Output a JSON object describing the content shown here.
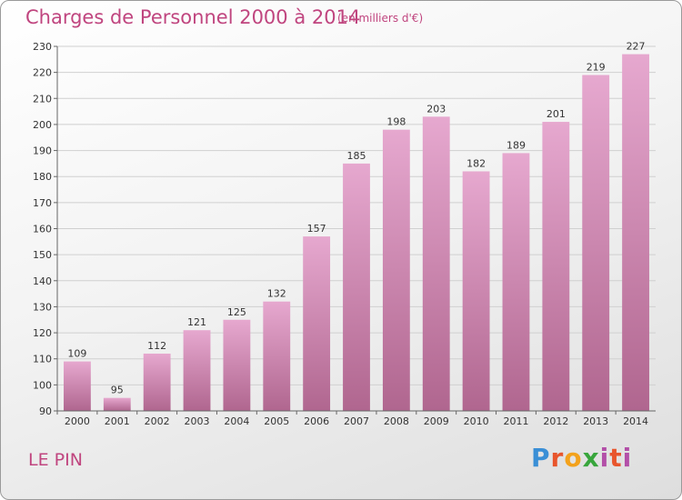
{
  "header": {
    "title": "Charges de Personnel 2000 à 2014",
    "subtitle": "(en milliers d'€)"
  },
  "footer": {
    "place": "LE PIN",
    "logo": {
      "p": "P",
      "r": "r",
      "o": "o",
      "x": "x",
      "i": "i",
      "t": "t",
      "i2": "i"
    }
  },
  "colors": {
    "bar_top": "#e6a8cf",
    "bar_bottom": "#b0668f",
    "accent": "#c0457f"
  },
  "chart_data": {
    "type": "bar",
    "title": "Charges de Personnel 2000 à 2014",
    "subtitle": "(en milliers d'€)",
    "xlabel": "",
    "ylabel": "",
    "categories": [
      "2000",
      "2001",
      "2002",
      "2003",
      "2004",
      "2005",
      "2006",
      "2007",
      "2008",
      "2009",
      "2010",
      "2011",
      "2012",
      "2013",
      "2014"
    ],
    "values": [
      109,
      95,
      112,
      121,
      125,
      132,
      157,
      185,
      198,
      203,
      182,
      189,
      201,
      219,
      227
    ],
    "ylim": [
      90,
      230
    ],
    "yticks": [
      90,
      100,
      110,
      120,
      130,
      140,
      150,
      160,
      170,
      180,
      190,
      200,
      210,
      220,
      230
    ],
    "grid": true,
    "legend": "none"
  }
}
